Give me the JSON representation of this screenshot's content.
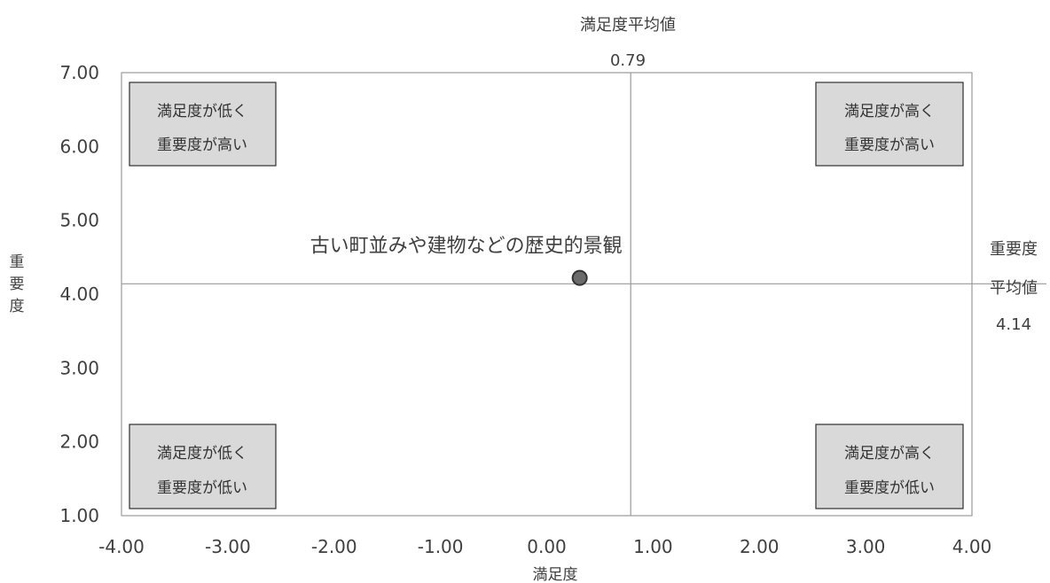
{
  "chart_data": {
    "type": "scatter",
    "xlabel": "満足度",
    "ylabel": "重要度",
    "xlim": [
      -4.0,
      4.0
    ],
    "ylim": [
      1.0,
      7.0
    ],
    "x_ticks": [
      "-4.00",
      "-3.00",
      "-2.00",
      "-1.00",
      "0.00",
      "1.00",
      "2.00",
      "3.00",
      "4.00"
    ],
    "y_ticks": [
      "1.00",
      "2.00",
      "3.00",
      "4.00",
      "5.00",
      "6.00",
      "7.00"
    ],
    "x_average": {
      "label": "満足度平均値",
      "value": 0.79,
      "value_text": "0.79"
    },
    "y_average": {
      "label_lines": [
        "重要度",
        "平均値"
      ],
      "value": 4.14,
      "value_text": "4.14"
    },
    "points": [
      {
        "label": "古い町並みや建物などの歴史的景観",
        "x": 0.31,
        "y": 4.22,
        "color": "#6b6b6b"
      }
    ],
    "quadrants": {
      "top_left": [
        "満足度が低く",
        "重要度が高い"
      ],
      "top_right": [
        "満足度が高く",
        "重要度が高い"
      ],
      "bottom_left": [
        "満足度が低く",
        "重要度が低い"
      ],
      "bottom_right": [
        "満足度が高く",
        "重要度が低い"
      ]
    },
    "grid": false,
    "colors": {
      "axis": "#9a9a9a",
      "quad_fill": "#d9d9d9",
      "quad_border": "#2f2f2f",
      "point": "#6b6b6b"
    }
  }
}
